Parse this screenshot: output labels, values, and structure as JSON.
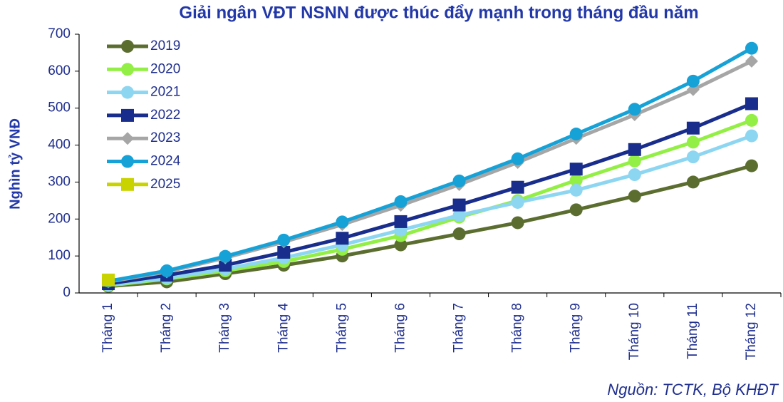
{
  "chart_data": {
    "type": "line",
    "title": "Giải ngân VĐT NSNN được thúc đẩy mạnh trong tháng đầu năm",
    "y_label": "Nghìn tỷ VNĐ",
    "source": "Nguồn: TCTK, Bộ KHĐT",
    "categories": [
      "Tháng 1",
      "Tháng 2",
      "Tháng 3",
      "Tháng 4",
      "Tháng 5",
      "Tháng 6",
      "Tháng 7",
      "Tháng 8",
      "Tháng 9",
      "Tháng 10",
      "Tháng 11",
      "Tháng 12"
    ],
    "series": [
      {
        "name": "2019",
        "color": "#5b6e2f",
        "marker": "circle",
        "values": [
          18,
          30,
          52,
          75,
          100,
          130,
          160,
          190,
          225,
          262,
          300,
          344
        ]
      },
      {
        "name": "2020",
        "color": "#93ef45",
        "marker": "circle",
        "values": [
          20,
          38,
          60,
          85,
          118,
          155,
          205,
          250,
          305,
          357,
          408,
          467
        ]
      },
      {
        "name": "2021",
        "color": "#8dd6f2",
        "marker": "circle",
        "values": [
          22,
          40,
          65,
          95,
          130,
          170,
          210,
          245,
          278,
          320,
          368,
          425
        ]
      },
      {
        "name": "2022",
        "color": "#182d8c",
        "marker": "square",
        "values": [
          25,
          48,
          75,
          110,
          148,
          193,
          238,
          286,
          335,
          388,
          446,
          512
        ]
      },
      {
        "name": "2023",
        "color": "#a6a6a6",
        "marker": "diamond",
        "values": [
          30,
          57,
          95,
          138,
          185,
          237,
          293,
          353,
          418,
          482,
          550,
          627
        ]
      },
      {
        "name": "2024",
        "color": "#16a2d6",
        "marker": "circle",
        "values": [
          32,
          60,
          99,
          143,
          192,
          247,
          303,
          363,
          430,
          497,
          573,
          662
        ]
      },
      {
        "name": "2025",
        "color": "#c9d300",
        "marker": "square",
        "values": [
          35,
          null,
          null,
          null,
          null,
          null,
          null,
          null,
          null,
          null,
          null,
          null
        ]
      }
    ],
    "ylim": [
      0,
      700
    ],
    "yticks": [
      0,
      100,
      200,
      300,
      400,
      500,
      600,
      700
    ],
    "grid": false,
    "legend": "upper left"
  }
}
